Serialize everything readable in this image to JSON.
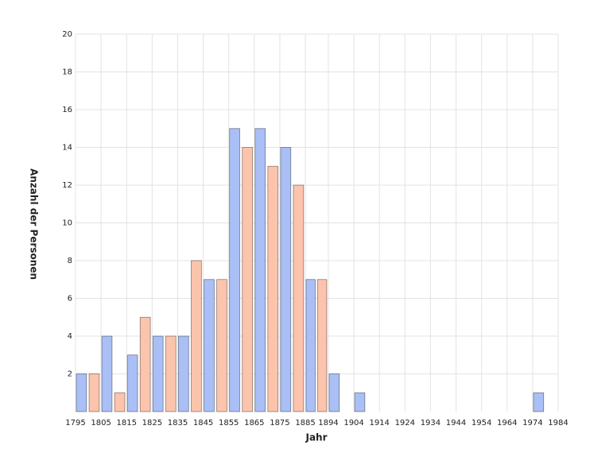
{
  "chart_data": {
    "type": "histogram",
    "x_label": "Jahr",
    "y_label": "Anzahl der Personen",
    "bins": [
      1795,
      1805,
      1815,
      1825,
      1835,
      1845,
      1855,
      1865,
      1875,
      1885,
      1894,
      1904,
      1914,
      1924,
      1934,
      1944,
      1954,
      1964,
      1974,
      1984
    ],
    "series": [
      {
        "color": "#a9bff5",
        "values": [
          2,
          4,
          3,
          4,
          4,
          7,
          15,
          15,
          14,
          7,
          2,
          1,
          0,
          0,
          0,
          0,
          0,
          0,
          1
        ]
      },
      {
        "color": "#fcc4ad",
        "values": [
          2,
          1,
          5,
          4,
          8,
          7,
          14,
          13,
          12,
          7,
          0,
          0,
          0,
          0,
          0,
          0,
          0,
          0,
          0
        ]
      }
    ],
    "xlim": [
      1795,
      1984
    ],
    "ylim": [
      0,
      20
    ],
    "yticks": [
      2,
      4,
      6,
      8,
      10,
      12,
      14,
      16,
      18,
      20
    ],
    "grid": true
  }
}
